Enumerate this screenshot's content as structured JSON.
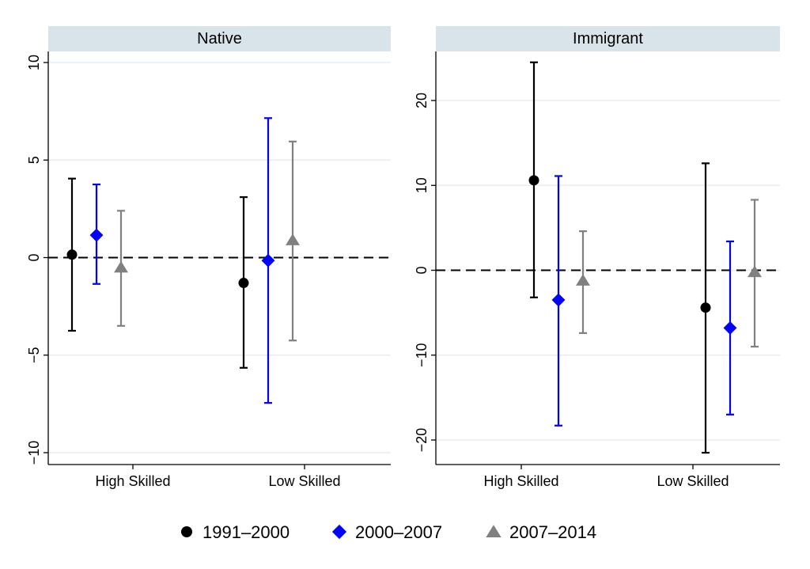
{
  "chart_data": [
    {
      "type": "scatter",
      "panel_title": "Native",
      "categories": [
        "High Skilled",
        "Low Skilled"
      ],
      "ylim": [
        -10.5,
        10.5
      ],
      "yticks": [
        -10,
        -5,
        0,
        5,
        10
      ],
      "reference_line": 0,
      "grid": true,
      "series": [
        {
          "name": "1991–2000",
          "color": "#000000",
          "marker": "circle",
          "points": [
            {
              "estimate": 0.15,
              "lower": -3.75,
              "upper": 4.05
            },
            {
              "estimate": -1.3,
              "lower": -5.65,
              "upper": 3.1
            }
          ]
        },
        {
          "name": "2000–2007",
          "color": "#0000ff",
          "marker": "diamond",
          "points": [
            {
              "estimate": 1.15,
              "lower": -1.35,
              "upper": 3.75
            },
            {
              "estimate": -0.15,
              "lower": -7.45,
              "upper": 7.15
            }
          ]
        },
        {
          "name": "2007–2014",
          "color": "#808080",
          "marker": "triangle",
          "points": [
            {
              "estimate": -0.5,
              "lower": -3.5,
              "upper": 2.4
            },
            {
              "estimate": 0.9,
              "lower": -4.25,
              "upper": 5.95
            }
          ]
        }
      ]
    },
    {
      "type": "scatter",
      "panel_title": "Immigrant",
      "categories": [
        "High Skilled",
        "Low Skilled"
      ],
      "ylim": [
        -22.3,
        25.5
      ],
      "yticks": [
        -20,
        -10,
        0,
        10,
        20
      ],
      "reference_line": 0,
      "grid": true,
      "series": [
        {
          "name": "1991–2000",
          "color": "#000000",
          "marker": "circle",
          "points": [
            {
              "estimate": 10.6,
              "lower": -3.2,
              "upper": 24.5
            },
            {
              "estimate": -4.4,
              "lower": -21.5,
              "upper": 12.6
            }
          ]
        },
        {
          "name": "2000–2007",
          "color": "#0000ff",
          "marker": "diamond",
          "points": [
            {
              "estimate": -3.5,
              "lower": -18.3,
              "upper": 11.1
            },
            {
              "estimate": -6.8,
              "lower": -17.0,
              "upper": 3.4
            }
          ]
        },
        {
          "name": "2007–2014",
          "color": "#808080",
          "marker": "triangle",
          "points": [
            {
              "estimate": -1.2,
              "lower": -7.4,
              "upper": 4.6
            },
            {
              "estimate": -0.2,
              "lower": -9.0,
              "upper": 8.3
            }
          ]
        }
      ]
    }
  ],
  "legend": {
    "position": "bottom",
    "items": [
      {
        "label": "1991–2000",
        "color": "#000000",
        "marker": "circle"
      },
      {
        "label": "2000–2007",
        "color": "#0000ff",
        "marker": "diamond"
      },
      {
        "label": "2007–2014",
        "color": "#808080",
        "marker": "triangle"
      }
    ]
  },
  "style": {
    "panel_header_color": "#d9e4ea",
    "grid_color": "#e6eef2",
    "axis_color": "#000000"
  }
}
